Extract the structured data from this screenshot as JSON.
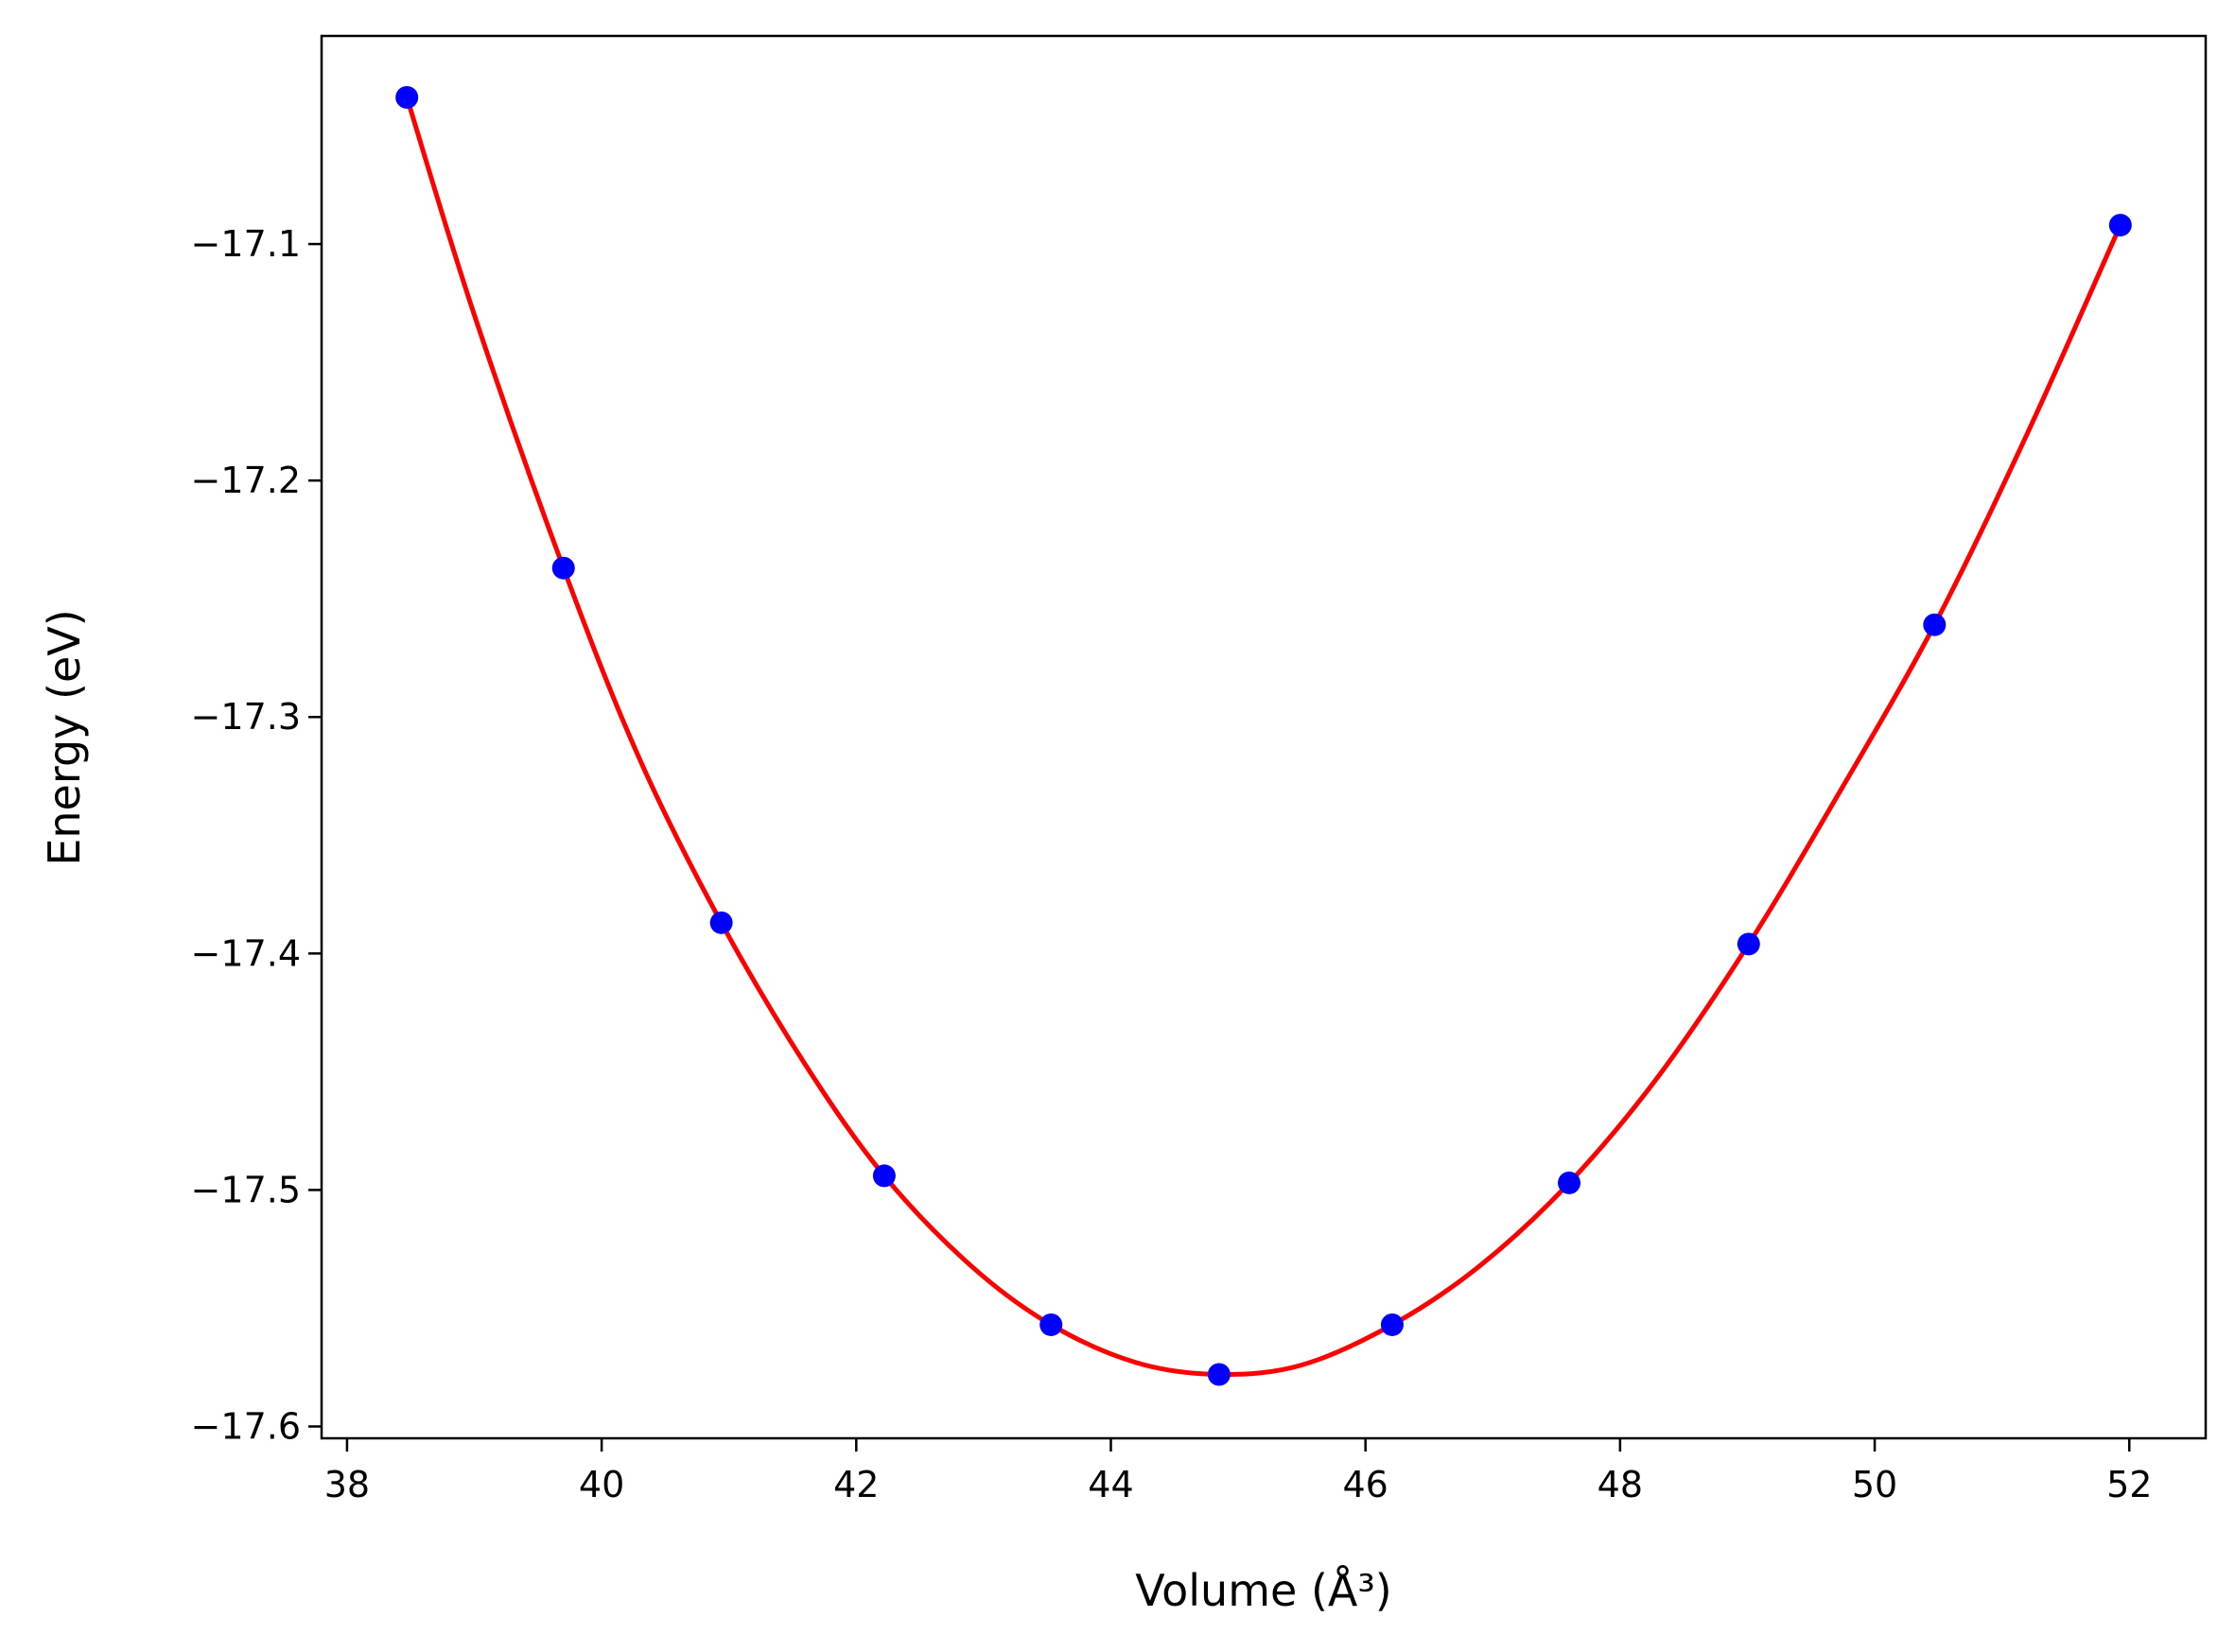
{
  "chart_data": {
    "type": "scatter",
    "xlabel": "Volume (Å³)",
    "ylabel": "Energy (eV)",
    "xlim": [
      37.8,
      52.6
    ],
    "ylim": [
      -17.605,
      -17.012
    ],
    "xticks": [
      38,
      40,
      42,
      44,
      46,
      48,
      50,
      52
    ],
    "yticks": [
      -17.1,
      -17.2,
      -17.3,
      -17.4,
      -17.5,
      -17.6
    ],
    "xtick_labels": [
      "38",
      "40",
      "42",
      "44",
      "46",
      "48",
      "50",
      "52"
    ],
    "ytick_labels": [
      "−17.1",
      "−17.2",
      "−17.3",
      "−17.4",
      "−17.5",
      "−17.6"
    ],
    "grid": false,
    "series": [
      {
        "kind": "points",
        "color": "#0000ff",
        "x": [
          38.47,
          39.7,
          40.94,
          42.22,
          43.53,
          44.85,
          46.21,
          47.6,
          49.01,
          50.47,
          51.93
        ],
        "y": [
          -17.038,
          -17.237,
          -17.387,
          -17.494,
          -17.557,
          -17.578,
          -17.557,
          -17.497,
          -17.396,
          -17.261,
          -17.092
        ]
      },
      {
        "kind": "fit-line",
        "color": "#ff0000",
        "x": [
          38.47,
          39.0,
          39.7,
          40.3,
          40.94,
          41.6,
          42.22,
          42.9,
          43.53,
          44.2,
          44.85,
          45.5,
          46.21,
          46.9,
          47.6,
          48.3,
          49.01,
          49.7,
          50.47,
          51.2,
          51.93
        ],
        "y": [
          -17.038,
          -17.13,
          -17.237,
          -17.318,
          -17.387,
          -17.447,
          -17.494,
          -17.532,
          -17.557,
          -17.573,
          -17.578,
          -17.574,
          -17.557,
          -17.532,
          -17.497,
          -17.452,
          -17.396,
          -17.334,
          -17.261,
          -17.18,
          -17.092
        ]
      }
    ]
  }
}
